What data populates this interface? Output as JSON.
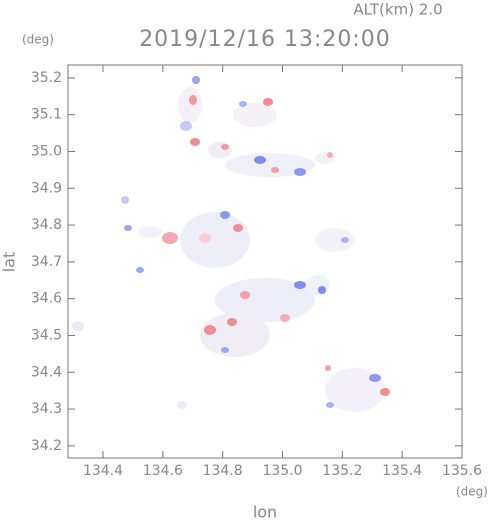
{
  "chart_data": {
    "type": "map",
    "title": "2019/12/16 13:20:00",
    "subtitle": "ALT(km) 2.0",
    "x_label": "lon",
    "y_label": "lat",
    "x_unit": "(deg)",
    "y_unit": "(deg)",
    "xlim": [
      134.283,
      135.6
    ],
    "ylim": [
      34.167,
      35.235
    ],
    "xticks": [
      134.4,
      134.6,
      134.8,
      {
        "value": 135,
        "label": "135.0"
      },
      135.2,
      135.4,
      135.6
    ],
    "yticks": [
      34.2,
      34.3,
      34.4,
      34.5,
      34.6,
      34.7,
      34.8,
      34.9,
      {
        "value": 35,
        "label": "35.0"
      },
      35.1,
      35.2
    ]
  }
}
